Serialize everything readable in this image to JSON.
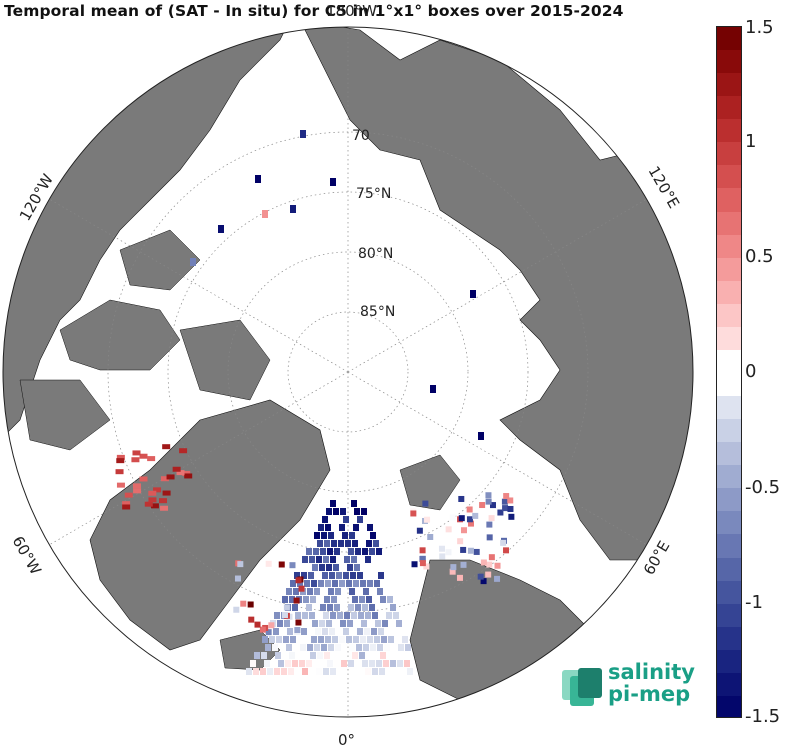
{
  "title": "Temporal mean of (SAT - In situ) for C5 in 1°x1° boxes over 2015-2024",
  "map": {
    "projection": "north polar stereographic",
    "latitude_labels": [
      "70",
      "75",
      "80",
      "85"
    ],
    "latitude_unit": "°N",
    "longitude_labels": [
      "180°W",
      "120°W",
      "60°W",
      "0°",
      "60°E",
      "120°E"
    ],
    "land_color": "#7a7a7a",
    "ocean_color": "#ffffff"
  },
  "colorbar": {
    "min": -1.5,
    "max": 1.5,
    "ticks": [
      "1.5",
      "1",
      "0.5",
      "0",
      "-0.5",
      "-1",
      "-1.5"
    ],
    "colormap": "blue-white-red",
    "low_color": "#000066",
    "high_color": "#6a0000"
  },
  "logo": {
    "line1": "salinity",
    "line2": "pi-mep",
    "color": "#1a9f86"
  }
}
